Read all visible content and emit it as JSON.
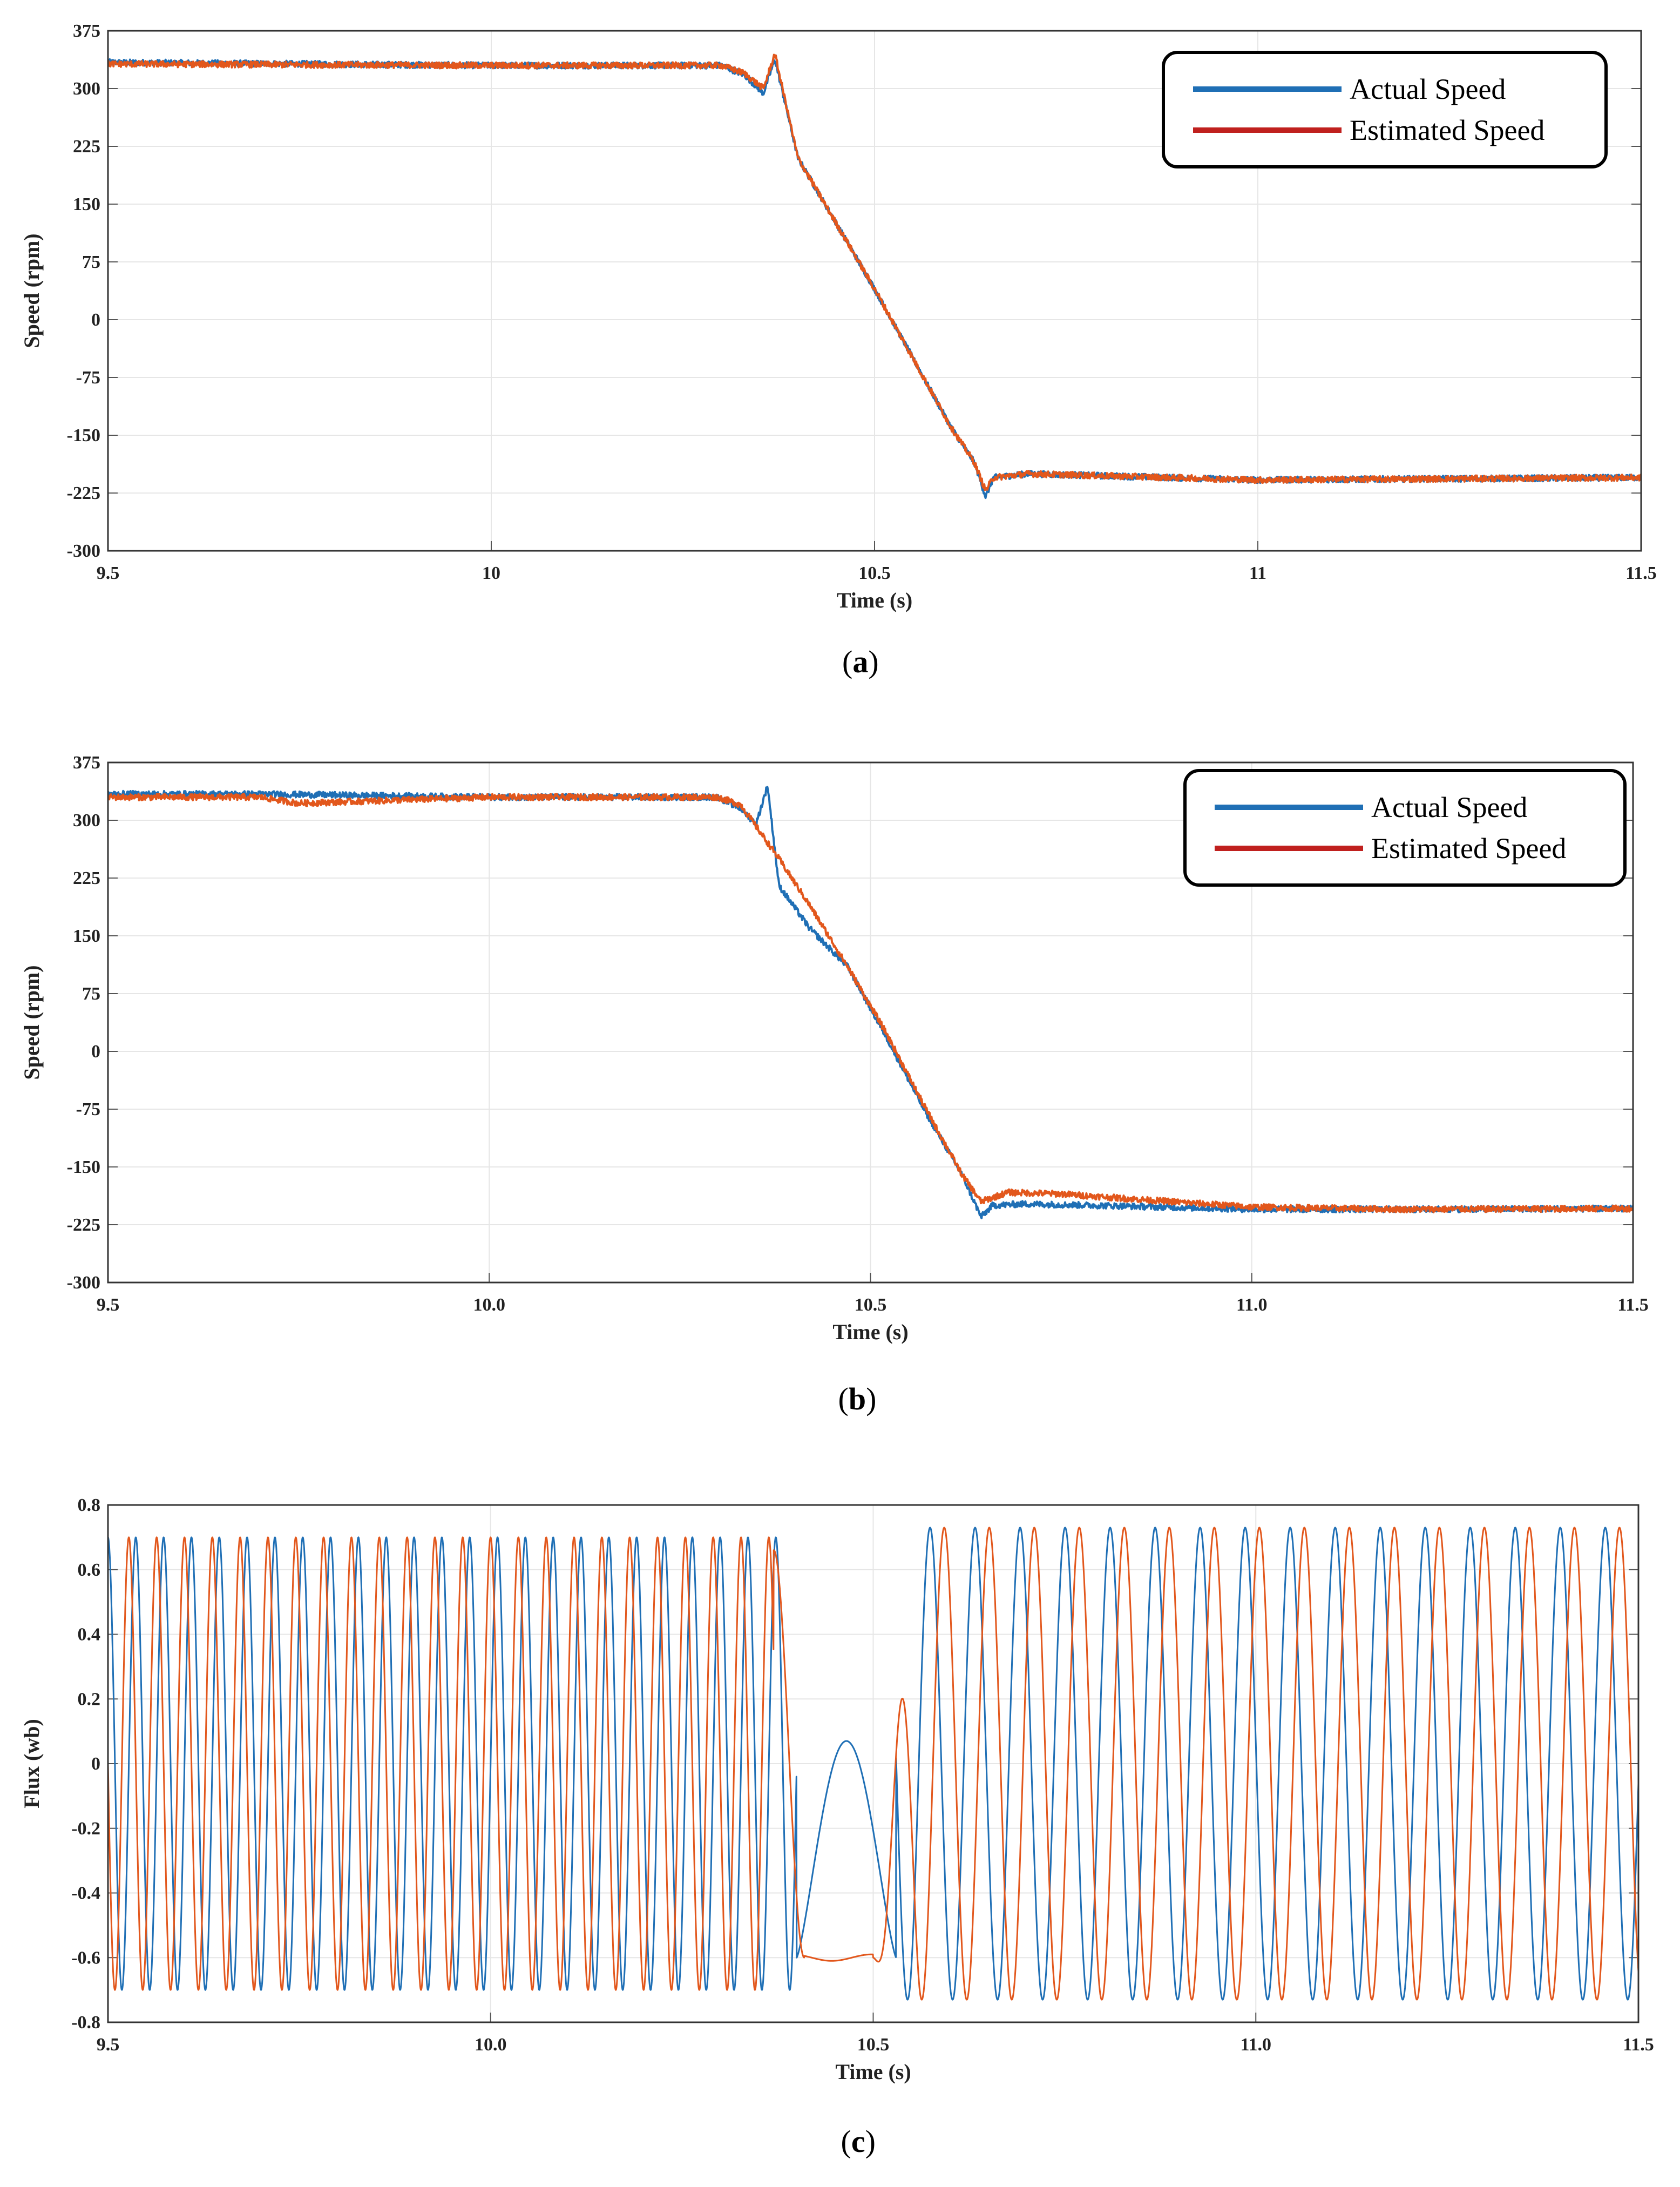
{
  "chart_data": [
    {
      "id": "a",
      "type": "line",
      "caption": "a",
      "xlabel": "Time (s)",
      "ylabel": "Speed (rpm)",
      "xlim": [
        9.5,
        11.5
      ],
      "ylim": [
        -300,
        375
      ],
      "xticks": [
        "9.5",
        "10",
        "10.5",
        "11",
        "11.5"
      ],
      "yticks": [
        "375",
        "300",
        "225",
        "150",
        "75",
        "0",
        "-75",
        "-150",
        "-225",
        "-300"
      ],
      "grid": true,
      "legend": {
        "position": "top-right",
        "entries": [
          "Actual Speed",
          "Estimated Speed"
        ]
      },
      "series": [
        {
          "name": "Actual Speed",
          "color": "#1f6fb5",
          "x": [
            9.5,
            10.0,
            10.3,
            10.33,
            10.355,
            10.37,
            10.4,
            10.45,
            10.5,
            10.55,
            10.6,
            10.63,
            10.645,
            10.655,
            10.7,
            11.0,
            11.5
          ],
          "y": [
            334,
            330,
            330,
            318,
            294,
            338,
            210,
            125,
            40,
            -50,
            -140,
            -185,
            -230,
            -205,
            -200,
            -208,
            -205
          ]
        },
        {
          "name": "Estimated Speed",
          "color": "#e2571c",
          "x": [
            9.5,
            10.0,
            10.3,
            10.33,
            10.355,
            10.37,
            10.4,
            10.45,
            10.5,
            10.55,
            10.6,
            10.63,
            10.645,
            10.655,
            10.7,
            11.0,
            11.5
          ],
          "y": [
            332,
            330,
            330,
            320,
            300,
            345,
            210,
            125,
            40,
            -50,
            -140,
            -185,
            -222,
            -205,
            -200,
            -208,
            -205
          ]
        }
      ]
    },
    {
      "id": "b",
      "type": "line",
      "caption": "b",
      "xlabel": "Time (s)",
      "ylabel": "Speed (rpm)",
      "xlim": [
        9.5,
        11.5
      ],
      "ylim": [
        -300,
        375
      ],
      "xticks": [
        "9.5",
        "10.0",
        "10.5",
        "11.0",
        "11.5"
      ],
      "yticks": [
        "375",
        "300",
        "225",
        "150",
        "75",
        "0",
        "-75",
        "-150",
        "-225",
        "-300"
      ],
      "grid": true,
      "legend": {
        "position": "top-right",
        "entries": [
          "Actual Speed",
          "Estimated Speed"
        ]
      },
      "series": [
        {
          "name": "Actual Speed",
          "color": "#1f6fb5",
          "x": [
            9.5,
            9.7,
            10.0,
            10.3,
            10.33,
            10.35,
            10.365,
            10.38,
            10.42,
            10.47,
            10.52,
            10.57,
            10.62,
            10.645,
            10.66,
            10.7,
            10.8,
            11.0,
            11.2,
            11.5
          ],
          "y": [
            334,
            334,
            330,
            330,
            315,
            295,
            345,
            215,
            160,
            110,
            20,
            -75,
            -160,
            -215,
            -200,
            -198,
            -200,
            -205,
            -205,
            -204
          ]
        },
        {
          "name": "Estimated Speed",
          "color": "#e2571c",
          "x": [
            9.5,
            9.7,
            9.75,
            10.0,
            10.3,
            10.33,
            10.38,
            10.42,
            10.47,
            10.52,
            10.57,
            10.62,
            10.645,
            10.68,
            10.75,
            10.85,
            11.0,
            11.2,
            11.5
          ],
          "y": [
            330,
            330,
            322,
            330,
            330,
            320,
            250,
            190,
            110,
            25,
            -70,
            -160,
            -195,
            -183,
            -185,
            -192,
            -202,
            -205,
            -204
          ]
        }
      ]
    },
    {
      "id": "c",
      "type": "line",
      "caption": "c",
      "xlabel": "Time (s)",
      "ylabel": "Flux (wb)",
      "xlim": [
        9.5,
        11.5
      ],
      "ylim": [
        -0.8,
        0.8
      ],
      "xticks": [
        "9.5",
        "10.0",
        "10.5",
        "11.0",
        "11.5"
      ],
      "yticks": [
        "0.8",
        "0.6",
        "0.4",
        "0.2",
        "0",
        "-0.2",
        "-0.4",
        "-0.6",
        "-0.8"
      ],
      "grid": true,
      "legend": null,
      "series": [
        {
          "name": "Flux (blue trace)",
          "color": "#1f6fb5",
          "model": "sinusoid",
          "amplitude_regions": [
            {
              "x_range": [
                9.5,
                10.4
              ],
              "amplitude": 0.7,
              "frequency_hz": 27.5
            },
            {
              "x_range": [
                10.4,
                10.53
              ],
              "min": -0.6,
              "peak": 0.07,
              "peak_at": 10.46
            },
            {
              "x_range": [
                10.53,
                11.5
              ],
              "amplitude": 0.73,
              "frequency_hz": 17
            }
          ]
        },
        {
          "name": "Flux (orange trace)",
          "color": "#e2571c",
          "model": "sinusoid",
          "phase_shift_deg": 90,
          "amplitude_regions": [
            {
              "x_range": [
                9.5,
                10.37
              ],
              "amplitude": 0.7,
              "frequency_hz": 27.5
            },
            {
              "x_range": [
                10.4,
                10.5
              ],
              "plateau": -0.6
            },
            {
              "x_range": [
                10.5,
                11.5
              ],
              "amplitude": 0.73,
              "frequency_hz": 17
            }
          ]
        }
      ]
    }
  ]
}
